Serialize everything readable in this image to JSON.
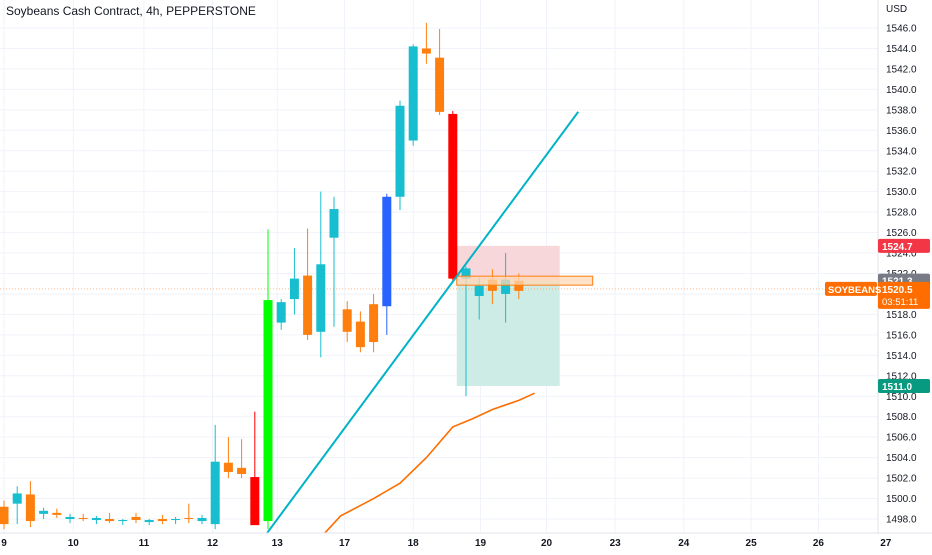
{
  "chart_data": {
    "type": "candlestick",
    "title": "Soybeans Cash Contract, 4h, PEPPERSTONE",
    "currency": "USD",
    "ylim": [
      1497,
      1548
    ],
    "y_ticks": [
      "1546.0",
      "1544.0",
      "1542.0",
      "1540.0",
      "1538.0",
      "1536.0",
      "1534.0",
      "1532.0",
      "1530.0",
      "1528.0",
      "1526.0",
      "1524.0",
      "1522.0",
      "1520.0",
      "1518.0",
      "1516.0",
      "1514.0",
      "1512.0",
      "1510.0",
      "1508.0",
      "1506.0",
      "1504.0",
      "1502.0",
      "1500.0",
      "1498.0"
    ],
    "x_ticks": [
      {
        "label": "9",
        "bar": 0
      },
      {
        "label": "10",
        "bar": 5.25
      },
      {
        "label": "11",
        "bar": 10.6
      },
      {
        "label": "12",
        "bar": 15.8
      },
      {
        "label": "13",
        "bar": 20.7
      },
      {
        "label": "17",
        "bar": 25.8
      },
      {
        "label": "18",
        "bar": 31.0
      },
      {
        "label": "19",
        "bar": 36.1
      },
      {
        "label": "20",
        "bar": 41.1
      },
      {
        "label": "23",
        "bar": 46.3
      },
      {
        "label": "24",
        "bar": 51.5
      },
      {
        "label": "25",
        "bar": 56.6
      },
      {
        "label": "26",
        "bar": 61.7
      },
      {
        "label": "27",
        "bar": 66.8
      }
    ],
    "candles": [
      {
        "o": 1499.2,
        "h": 1499.8,
        "l": 1497.0,
        "c": 1497.5,
        "color": "#ff7f0e"
      },
      {
        "o": 1499.5,
        "h": 1501.2,
        "l": 1497.5,
        "c": 1500.5,
        "color": "#17becf"
      },
      {
        "o": 1500.4,
        "h": 1501.7,
        "l": 1497.2,
        "c": 1497.8,
        "color": "#ff7f0e"
      },
      {
        "o": 1498.5,
        "h": 1499.1,
        "l": 1498.0,
        "c": 1498.8,
        "color": "#17becf"
      },
      {
        "o": 1498.6,
        "h": 1499.0,
        "l": 1498.1,
        "c": 1498.4,
        "color": "#ff7f0e"
      },
      {
        "o": 1498.0,
        "h": 1498.5,
        "l": 1497.6,
        "c": 1498.2,
        "color": "#17becf"
      },
      {
        "o": 1498.1,
        "h": 1498.5,
        "l": 1497.8,
        "c": 1498.0,
        "color": "#ff7f0e"
      },
      {
        "o": 1497.9,
        "h": 1498.3,
        "l": 1497.5,
        "c": 1498.1,
        "color": "#17becf"
      },
      {
        "o": 1498.0,
        "h": 1498.6,
        "l": 1497.6,
        "c": 1497.8,
        "color": "#ff7f0e"
      },
      {
        "o": 1497.8,
        "h": 1498.0,
        "l": 1497.4,
        "c": 1497.9,
        "color": "#17becf"
      },
      {
        "o": 1498.2,
        "h": 1498.6,
        "l": 1497.6,
        "c": 1497.9,
        "color": "#ff7f0e"
      },
      {
        "o": 1497.7,
        "h": 1498.0,
        "l": 1497.4,
        "c": 1497.9,
        "color": "#17becf"
      },
      {
        "o": 1498.0,
        "h": 1498.4,
        "l": 1497.5,
        "c": 1497.8,
        "color": "#ff7f0e"
      },
      {
        "o": 1497.9,
        "h": 1498.2,
        "l": 1497.5,
        "c": 1498.0,
        "color": "#17becf"
      },
      {
        "o": 1498.1,
        "h": 1499.5,
        "l": 1497.6,
        "c": 1498.0,
        "color": "#ff7f0e"
      },
      {
        "o": 1497.8,
        "h": 1498.4,
        "l": 1497.5,
        "c": 1498.1,
        "color": "#17becf"
      },
      {
        "o": 1497.5,
        "h": 1507.2,
        "l": 1497.0,
        "c": 1503.6,
        "color": "#17becf"
      },
      {
        "o": 1503.5,
        "h": 1506.0,
        "l": 1502.0,
        "c": 1502.6,
        "color": "#ff7f0e"
      },
      {
        "o": 1503.0,
        "h": 1505.8,
        "l": 1502.0,
        "c": 1502.4,
        "color": "#ff7f0e"
      },
      {
        "o": 1502.1,
        "h": 1508.5,
        "l": 1497.5,
        "c": 1497.4,
        "color": "#ff0000"
      },
      {
        "o": 1497.8,
        "h": 1526.3,
        "l": 1497.0,
        "c": 1519.4,
        "color": "#00ff00"
      },
      {
        "o": 1517.2,
        "h": 1519.5,
        "l": 1516.5,
        "c": 1519.2,
        "color": "#17becf"
      },
      {
        "o": 1519.5,
        "h": 1524.5,
        "l": 1518.0,
        "c": 1521.5,
        "color": "#17becf"
      },
      {
        "o": 1521.8,
        "h": 1526.4,
        "l": 1515.5,
        "c": 1516.0,
        "color": "#ff7f0e"
      },
      {
        "o": 1516.3,
        "h": 1530.0,
        "l": 1513.8,
        "c": 1522.9,
        "color": "#17becf"
      },
      {
        "o": 1525.5,
        "h": 1529.5,
        "l": 1516.8,
        "c": 1528.3,
        "color": "#17becf"
      },
      {
        "o": 1518.5,
        "h": 1519.3,
        "l": 1515.3,
        "c": 1516.3,
        "color": "#ff7f0e"
      },
      {
        "o": 1517.3,
        "h": 1518.3,
        "l": 1514.3,
        "c": 1514.8,
        "color": "#ff7f0e"
      },
      {
        "o": 1519.0,
        "h": 1520.0,
        "l": 1514.3,
        "c": 1515.3,
        "color": "#ff7f0e"
      },
      {
        "o": 1518.8,
        "h": 1529.8,
        "l": 1516.0,
        "c": 1529.5,
        "color": "#2962ff"
      },
      {
        "o": 1529.5,
        "h": 1538.9,
        "l": 1528.2,
        "c": 1538.4,
        "color": "#17becf"
      },
      {
        "o": 1535.0,
        "h": 1544.4,
        "l": 1534.5,
        "c": 1544.2,
        "color": "#17becf"
      },
      {
        "o": 1544.0,
        "h": 1546.5,
        "l": 1542.5,
        "c": 1543.5,
        "color": "#ff7f0e"
      },
      {
        "o": 1543.1,
        "h": 1545.9,
        "l": 1537.5,
        "c": 1537.8,
        "color": "#ff7f0e"
      },
      {
        "o": 1537.6,
        "h": 1537.9,
        "l": 1521.3,
        "c": 1521.5,
        "color": "#ff0000"
      },
      {
        "o": 1521.5,
        "h": 1522.7,
        "l": 1510.0,
        "c": 1522.5,
        "color": "#17becf"
      },
      {
        "o": 1520.8,
        "h": 1521.6,
        "l": 1517.5,
        "c": 1519.8,
        "color": "#17becf"
      },
      {
        "o": 1521.4,
        "h": 1522.4,
        "l": 1519.0,
        "c": 1520.3,
        "color": "#ff7f0e"
      },
      {
        "o": 1520.0,
        "h": 1524.0,
        "l": 1517.2,
        "c": 1521.4,
        "color": "#17becf"
      },
      {
        "o": 1521.3,
        "h": 1522.0,
        "l": 1519.5,
        "c": 1520.3,
        "color": "#ff7f0e"
      }
    ],
    "trendline": {
      "from": [
        19.0,
        1495.0
      ],
      "to": [
        43.5,
        1537.8
      ],
      "color": "#00b3c6"
    },
    "moving_average": {
      "color": "#ff6d00",
      "points": [
        [
          23,
          1494.8
        ],
        [
          25.5,
          1498.3
        ],
        [
          28.0,
          1500.0
        ],
        [
          30.0,
          1501.5
        ],
        [
          32.0,
          1504.0
        ],
        [
          34.0,
          1507.0
        ],
        [
          35.5,
          1507.8
        ],
        [
          37.0,
          1508.7
        ],
        [
          39.0,
          1509.6
        ],
        [
          40.2,
          1510.3
        ]
      ]
    },
    "position": {
      "entry": 1521.3,
      "stop": 1524.7,
      "target": 1511.0,
      "from_bar": 34.3,
      "to_bar": 44.6,
      "zone_to_bar": 42.1
    },
    "price_labels": {
      "stop": "1524.7",
      "entry": "1521.3",
      "current_symbol": "SOYBEANS",
      "current": "1520.5",
      "countdown": "03:51:11",
      "target": "1511.0"
    },
    "current_price": 1520.5,
    "colors": {
      "up": "#17becf",
      "down": "#ff7f0e",
      "stop_zone": "#f8d7da",
      "target_zone": "#cdece6",
      "stop_label": "#f23645",
      "target_label": "#089981",
      "current_label": "#ff6d00",
      "entry_label": "#787b86"
    }
  }
}
